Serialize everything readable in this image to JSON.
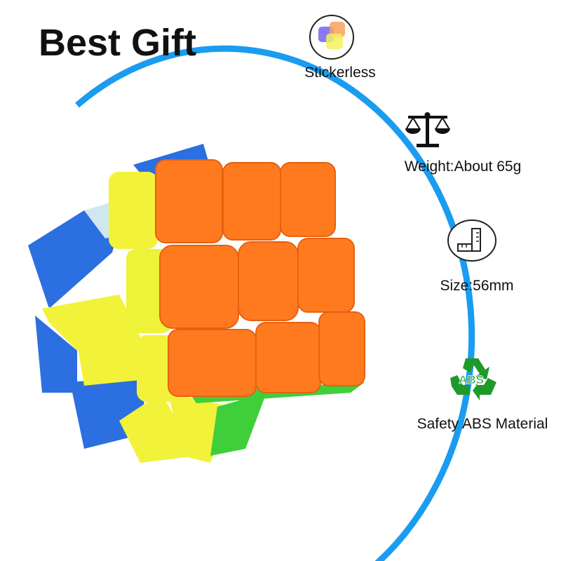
{
  "title": "Best Gift",
  "features": [
    {
      "icon": "stickerless-icon",
      "label": "Stickerless"
    },
    {
      "icon": "balance-scale-icon",
      "label": "Weight:About 65g"
    },
    {
      "icon": "ruler-icon",
      "label": "Size:56mm"
    },
    {
      "icon": "recycle-abs-icon",
      "label": "Safety ABS Material",
      "icon_text": "ABS"
    }
  ],
  "colors": {
    "arc": "#1a9cf0",
    "orange": "#ff7a1f",
    "yellow": "#f2f23a",
    "blue": "#2c6fe0",
    "green": "#3fcf3a",
    "recycle_green": "#1e9a2a"
  }
}
